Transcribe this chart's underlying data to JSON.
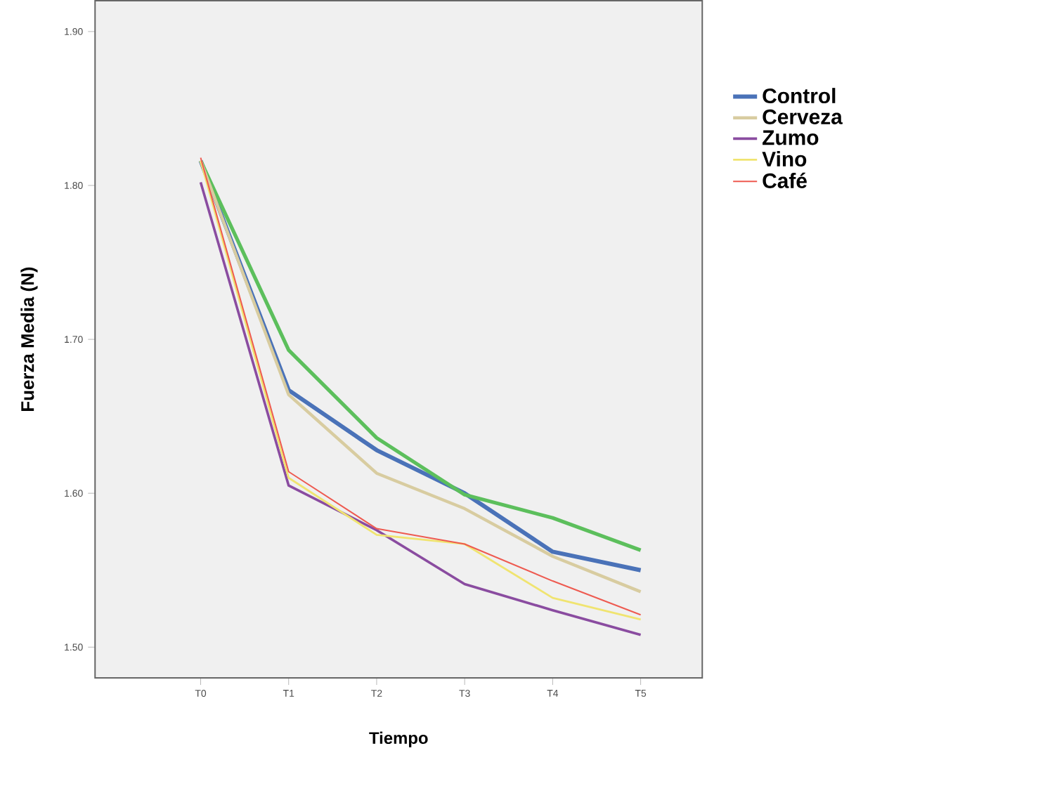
{
  "chart_data": {
    "type": "line",
    "xlabel": "Tiempo",
    "ylabel": "Fuerza Media (N)",
    "categories": [
      "T0",
      "T1",
      "T2",
      "T3",
      "T4",
      "T5"
    ],
    "series": [
      {
        "name": "Control",
        "color": "#4a72b8",
        "values": [
          1.816,
          1.667,
          1.628,
          1.6,
          1.562,
          1.55
        ]
      },
      {
        "color": "#5cbf5c",
        "values": [
          1.816,
          1.693,
          1.636,
          1.599,
          1.584,
          1.563
        ]
      },
      {
        "name": "Cerveza",
        "color": "#d8cca0",
        "values": [
          1.816,
          1.664,
          1.613,
          1.59,
          1.559,
          1.536
        ]
      },
      {
        "name": "Zumo",
        "color": "#8a4ca0",
        "values": [
          1.802,
          1.605,
          1.576,
          1.541,
          1.524,
          1.508
        ]
      },
      {
        "name": "Vino",
        "color": "#f0e470",
        "values": [
          1.816,
          1.61,
          1.573,
          1.567,
          1.532,
          1.518
        ]
      },
      {
        "name": "Café",
        "color": "#ee5a50",
        "values": [
          1.818,
          1.614,
          1.577,
          1.567,
          1.543,
          1.521
        ]
      }
    ],
    "ylim": [
      1.48,
      1.92
    ],
    "yticks": [
      {
        "value": 1.5,
        "label": "1.50"
      },
      {
        "value": 1.6,
        "label": "1.60"
      },
      {
        "value": 1.7,
        "label": "1.70"
      },
      {
        "value": 1.8,
        "label": "1.80"
      },
      {
        "value": 1.9,
        "label": "1.90"
      }
    ],
    "grid": false,
    "legend": "right",
    "marker": "none",
    "line_style": "solid"
  }
}
